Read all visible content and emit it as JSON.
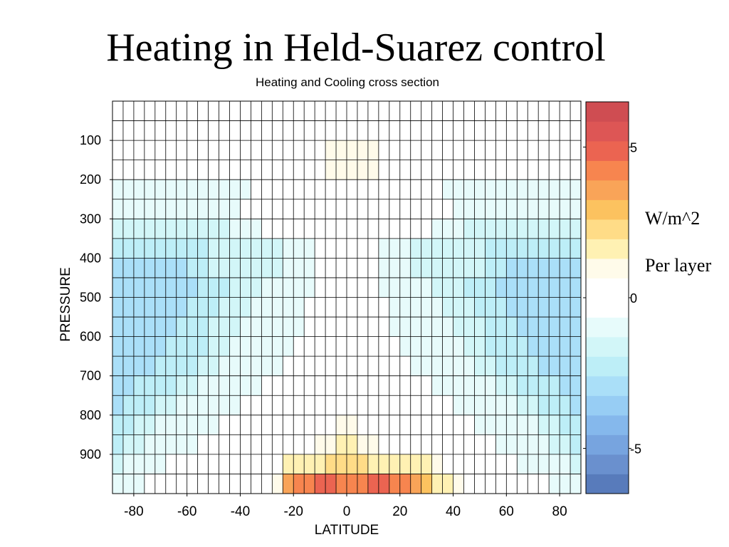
{
  "slide": {
    "title": "Heating in Held-Suarez control",
    "unit_label": "W/m^2",
    "per_label": "Per layer"
  },
  "chart_data": {
    "type": "heatmap",
    "title": "Heating and Cooling cross section",
    "xlabel": "LATITUDE",
    "ylabel": "PRESSURE",
    "x_range": [
      -88,
      88
    ],
    "y_range": [
      0,
      1000
    ],
    "y_inverted": true,
    "x_ticks": [
      -80,
      -60,
      -40,
      -20,
      0,
      20,
      40,
      60,
      80
    ],
    "y_ticks": [
      100,
      200,
      300,
      400,
      500,
      600,
      700,
      800,
      900
    ],
    "lat_centers": [
      -86,
      -82,
      -78,
      -74,
      -70,
      -66,
      -62,
      -58,
      -54,
      -50,
      -46,
      -42,
      -38,
      -34,
      -30,
      -26,
      -22,
      -18,
      -14,
      -10,
      -6,
      -2,
      2,
      6,
      10,
      14,
      18,
      22,
      26,
      30,
      34,
      38,
      42,
      46,
      50,
      54,
      58,
      62,
      66,
      70,
      74,
      78,
      82,
      86
    ],
    "level_centers": [
      25,
      75,
      125,
      175,
      225,
      275,
      325,
      375,
      425,
      475,
      525,
      575,
      625,
      675,
      725,
      775,
      825,
      875,
      925,
      975
    ],
    "colorbar": {
      "min": -6.5,
      "max": 6.5,
      "ticks": [
        5,
        0,
        -5
      ],
      "tick_labels": [
        "5",
        "0",
        "-5"
      ],
      "colors": [
        "#587bbb",
        "#6a90ce",
        "#77a4df",
        "#85b8ec",
        "#97cdf4",
        "#aadff8",
        "#bdeef7",
        "#d2f6f8",
        "#e7fbfb",
        "#ffffff",
        "#ffffff",
        "#fffbea",
        "#fff1b3",
        "#ffdc87",
        "#fcc25f",
        "#f9a458",
        "#f7854f",
        "#eb6451",
        "#dd5655",
        "#cf4d52"
      ]
    },
    "grid": true,
    "legend": "none",
    "z_units": "W/m^2 per layer",
    "z": [
      [
        0,
        0,
        0,
        0,
        0,
        0,
        0,
        0,
        0,
        0,
        0,
        0,
        0,
        0,
        0,
        0,
        0,
        0,
        0,
        0,
        0.6,
        0.6,
        0.6,
        0.6,
        0,
        0,
        0,
        0,
        0,
        0,
        0,
        0,
        0,
        0,
        0,
        0,
        0,
        0,
        0,
        0,
        0,
        0,
        0,
        0
      ],
      [
        0,
        -0.4,
        -0.4,
        -0.4,
        -0.4,
        -0.4,
        -0.4,
        -0.4,
        -0.4,
        -0.4,
        -0.4,
        0,
        0,
        0,
        0,
        0,
        0,
        0,
        0.6,
        0.6,
        0.6,
        0.6,
        0.6,
        0.6,
        0.6,
        0.6,
        0.6,
        0,
        0,
        0,
        0,
        0,
        0,
        0,
        -0.4,
        -0.4,
        -0.4,
        -0.4,
        -0.4,
        -0.4,
        -0.4,
        -0.4,
        -0.4,
        0
      ],
      [
        -0.6,
        -0.6,
        -0.6,
        -0.6,
        -0.6,
        -0.6,
        -0.6,
        -0.6,
        0,
        0,
        0,
        0,
        0,
        0,
        0,
        0,
        0,
        0,
        0,
        0.6,
        1.2,
        1.2,
        1.2,
        1.2,
        1.2,
        0.6,
        0.6,
        0,
        0,
        0,
        0,
        0,
        0,
        0,
        0,
        0,
        -0.6,
        -0.6,
        -0.6,
        -0.6,
        -0.6,
        -0.6,
        -0.6,
        -0.6
      ],
      [
        -0.6,
        -0.6,
        -0.6,
        -0.6,
        -0.6,
        -0.6,
        -0.6,
        -0.6,
        0,
        0,
        0,
        0,
        0,
        0,
        0,
        0,
        0,
        0,
        0,
        0.6,
        1.2,
        1.2,
        1.2,
        1.2,
        1.2,
        0.6,
        0.6,
        0,
        0,
        0,
        0,
        0,
        0,
        0,
        0,
        0,
        -0.6,
        -0.6,
        -0.6,
        -0.6,
        -0.6,
        -0.6,
        -0.6,
        -0.6
      ],
      [
        -0.8,
        -0.8,
        -0.8,
        -0.8,
        -0.8,
        -0.8,
        -0.8,
        -0.8,
        -0.8,
        -0.8,
        -0.8,
        -0.8,
        -0.8,
        0,
        0,
        0,
        0,
        0,
        0,
        0,
        0.6,
        0.6,
        0.6,
        0.6,
        0,
        0,
        0,
        0,
        0,
        0,
        0,
        -0.8,
        -0.8,
        -0.8,
        -0.8,
        -0.8,
        -0.8,
        -0.8,
        -0.8,
        -0.8,
        -0.8,
        -0.8,
        -0.8,
        -0.8
      ],
      [
        -1.2,
        -1.2,
        -1.2,
        -1.2,
        -1.2,
        -1.2,
        -1.2,
        -1.2,
        -1.2,
        -1.2,
        -1.2,
        -1.2,
        -0.5,
        -0.5,
        0,
        0,
        0,
        0,
        0,
        0,
        0.6,
        0.6,
        0.6,
        0.6,
        0,
        0,
        0,
        0,
        0,
        0,
        -0.5,
        -0.5,
        -1.2,
        -1.2,
        -1.2,
        -1.2,
        -1.2,
        -1.2,
        -1.2,
        -1.2,
        -1.2,
        -1.2,
        -1.2,
        -1.2
      ],
      [
        -1.6,
        -1.6,
        -1.6,
        -1.6,
        -1.6,
        -1.6,
        -1.6,
        -1.6,
        -1.6,
        -1.6,
        -1.6,
        -1.2,
        -1.2,
        -1.2,
        -0.6,
        -0.6,
        0,
        0,
        0,
        0,
        0.6,
        0.6,
        0.6,
        0.6,
        0,
        0,
        0,
        0,
        -0.6,
        -0.6,
        -1.2,
        -1.2,
        -1.2,
        -1.6,
        -1.6,
        -1.6,
        -1.6,
        -1.6,
        -1.6,
        -1.6,
        -1.6,
        -1.6,
        -1.6,
        -1.6
      ],
      [
        -2.2,
        -2.2,
        -2.2,
        -2.2,
        -2.2,
        -2.2,
        -2.2,
        -2.2,
        -2.2,
        -1.6,
        -1.6,
        -1.6,
        -1.6,
        -1.6,
        -1.6,
        -1.6,
        -0.8,
        -0.8,
        -0.8,
        0,
        0.6,
        0.6,
        0.6,
        0.6,
        0,
        -0.8,
        -0.8,
        -0.8,
        -1.6,
        -1.6,
        -1.6,
        -1.6,
        -1.6,
        -1.6,
        -1.6,
        -2.2,
        -2.2,
        -2.2,
        -2.2,
        -2.2,
        -2.2,
        -2.2,
        -2.2,
        -2.2
      ],
      [
        -2.8,
        -2.8,
        -2.8,
        -2.8,
        -2.8,
        -2.8,
        -2.8,
        -2.4,
        -2.4,
        -1.8,
        -1.8,
        -1.8,
        -1.4,
        -1.4,
        -1.4,
        -1.4,
        -0.8,
        -0.8,
        -0.8,
        0,
        0.6,
        0.6,
        0.6,
        0.6,
        0,
        -0.8,
        -0.8,
        -0.8,
        -1.4,
        -1.4,
        -1.4,
        -1.4,
        -1.8,
        -1.8,
        -1.8,
        -2.4,
        -2.4,
        -2.8,
        -2.8,
        -2.8,
        -2.8,
        -2.8,
        -2.8,
        -2.8
      ],
      [
        -3.2,
        -3.2,
        -3.2,
        -3.2,
        -3.2,
        -3.2,
        -2.8,
        -2.8,
        -2.4,
        -2.0,
        -2.0,
        -1.6,
        -1.6,
        -1.6,
        -1.2,
        -1.2,
        -0.8,
        -0.8,
        -0.8,
        0,
        0.6,
        0.6,
        0.6,
        0.6,
        0,
        -0.8,
        -0.8,
        -0.8,
        -1.2,
        -1.2,
        -1.6,
        -1.6,
        -1.6,
        -2.0,
        -2.0,
        -2.4,
        -2.8,
        -2.8,
        -3.2,
        -3.2,
        -3.2,
        -3.2,
        -3.2,
        -3.2
      ],
      [
        -3.2,
        -3.2,
        -3.2,
        -3.2,
        -3.2,
        -2.8,
        -2.8,
        -2.4,
        -2.4,
        -2.0,
        -1.6,
        -1.6,
        -1.6,
        -1.2,
        -1.2,
        -0.8,
        -0.8,
        -0.8,
        0,
        0,
        0.6,
        0.6,
        0.6,
        0.6,
        0,
        0,
        -0.8,
        -0.8,
        -0.8,
        -1.2,
        -1.2,
        -1.6,
        -1.6,
        -1.6,
        -2.0,
        -2.4,
        -2.4,
        -2.8,
        -2.8,
        -3.2,
        -3.2,
        -3.2,
        -3.2,
        -3.2
      ],
      [
        -3.2,
        -3.2,
        -3.2,
        -3.2,
        -2.8,
        -2.8,
        -2.4,
        -2.4,
        -2.0,
        -1.6,
        -1.6,
        -1.6,
        -1.2,
        -1.2,
        -1.2,
        -0.8,
        -0.8,
        -0.8,
        0,
        0,
        0,
        0.6,
        0.6,
        0,
        0,
        0,
        -0.8,
        -0.8,
        -0.8,
        -1.2,
        -1.2,
        -1.2,
        -1.6,
        -1.6,
        -1.6,
        -2.0,
        -2.4,
        -2.4,
        -2.8,
        -2.8,
        -3.2,
        -3.2,
        -3.2,
        -3.2
      ],
      [
        -3.2,
        -3.2,
        -3.2,
        -2.8,
        -2.8,
        -2.4,
        -2.4,
        -2.0,
        -2.0,
        -1.6,
        -1.6,
        -1.2,
        -1.2,
        -1.2,
        -0.8,
        -0.8,
        -0.8,
        0,
        0,
        0,
        0,
        0,
        0,
        0,
        0,
        0,
        0,
        -0.8,
        -0.8,
        -0.8,
        -1.2,
        -1.2,
        -1.2,
        -1.6,
        -1.6,
        -2.0,
        -2.0,
        -2.4,
        -2.4,
        -2.8,
        -2.8,
        -3.2,
        -3.2,
        -3.2
      ],
      [
        -3.2,
        -3.2,
        -2.8,
        -2.8,
        -2.4,
        -2.4,
        -2.0,
        -2.0,
        -1.6,
        -1.6,
        -1.2,
        -1.2,
        -1.2,
        -0.8,
        -0.8,
        -0.8,
        0,
        0,
        0,
        0,
        0,
        0,
        0,
        0,
        0,
        0,
        0,
        0,
        -0.8,
        -0.8,
        -0.8,
        -1.2,
        -1.2,
        -1.2,
        -1.6,
        -1.6,
        -2.0,
        -2.0,
        -2.4,
        -2.4,
        -2.8,
        -2.8,
        -3.2,
        -3.2
      ],
      [
        -3.2,
        -2.8,
        -2.4,
        -2.4,
        -2.0,
        -2.0,
        -1.6,
        -1.6,
        -1.2,
        -1.2,
        -1.2,
        -0.8,
        -0.8,
        -0.8,
        -0.5,
        -0.5,
        0,
        0,
        0,
        0,
        0,
        0,
        0,
        0,
        0,
        0,
        0,
        0,
        -0.5,
        -0.5,
        -0.8,
        -0.8,
        -0.8,
        -1.2,
        -1.2,
        -1.2,
        -1.6,
        -1.6,
        -2.0,
        -2.0,
        -2.4,
        -2.4,
        -2.8,
        -3.2
      ],
      [
        -2.8,
        -2.4,
        -2.0,
        -2.0,
        -1.6,
        -1.6,
        -1.2,
        -1.2,
        -1.2,
        -0.8,
        -0.8,
        -0.8,
        -0.5,
        -0.5,
        0,
        0,
        0,
        0,
        0,
        0,
        0.6,
        0.6,
        0.6,
        0.6,
        0,
        0,
        0,
        0,
        0,
        0,
        -0.5,
        -0.5,
        -0.8,
        -0.8,
        -0.8,
        -1.2,
        -1.2,
        -1.2,
        -1.6,
        -1.6,
        -2.0,
        -2.0,
        -2.4,
        -2.8
      ],
      [
        -2.4,
        -2.0,
        -1.6,
        -1.6,
        -1.2,
        -1.2,
        -1.2,
        -0.8,
        -0.8,
        -0.8,
        -0.5,
        -0.5,
        0,
        0,
        0,
        0,
        0,
        0,
        0,
        0.6,
        0.6,
        1.2,
        1.2,
        0.6,
        0.6,
        0,
        0,
        0,
        0,
        0,
        0,
        0,
        -0.5,
        -0.5,
        -0.8,
        -0.8,
        -0.8,
        -1.2,
        -1.2,
        -1.2,
        -1.6,
        -1.6,
        -2.0,
        -2.4
      ],
      [
        -2.0,
        -1.6,
        -1.6,
        -1.2,
        -1.2,
        -0.8,
        -0.8,
        -0.8,
        -0.5,
        -0.5,
        0,
        0,
        0,
        0,
        0,
        0,
        0,
        0.6,
        0.6,
        1.2,
        1.2,
        1.8,
        1.8,
        1.2,
        1.2,
        0.6,
        0.6,
        0,
        0,
        0,
        0,
        0,
        0,
        0,
        -0.5,
        -0.5,
        -0.8,
        -0.8,
        -0.8,
        -1.2,
        -1.2,
        -1.6,
        -1.6,
        -2.0
      ],
      [
        -1.6,
        -1.2,
        -1.2,
        -0.8,
        -0.8,
        -0.5,
        -0.5,
        -0.5,
        0,
        0,
        0,
        0,
        0,
        0,
        0,
        0,
        1.8,
        1.8,
        1.8,
        1.8,
        2.4,
        2.4,
        2.4,
        2.4,
        1.8,
        1.8,
        1.8,
        1.8,
        1.8,
        1.8,
        1.2,
        0,
        0,
        0,
        0,
        -0.5,
        -0.5,
        -0.5,
        -0.8,
        -0.8,
        -1.2,
        -1.2,
        -1.2,
        -1.6
      ],
      [
        -1.2,
        -0.8,
        -0.8,
        -0.5,
        -0.5,
        0,
        0,
        0,
        0,
        0,
        0,
        0,
        0,
        0,
        0.6,
        1.2,
        3.5,
        4.0,
        4.5,
        5.0,
        5.0,
        4.5,
        4.0,
        4.5,
        5.0,
        5.0,
        4.5,
        4.0,
        3.5,
        3.0,
        1.8,
        1.8,
        1.2,
        0.6,
        0,
        0,
        0,
        0,
        0,
        -0.5,
        -0.5,
        -0.8,
        -0.8,
        -1.2
      ]
    ]
  }
}
